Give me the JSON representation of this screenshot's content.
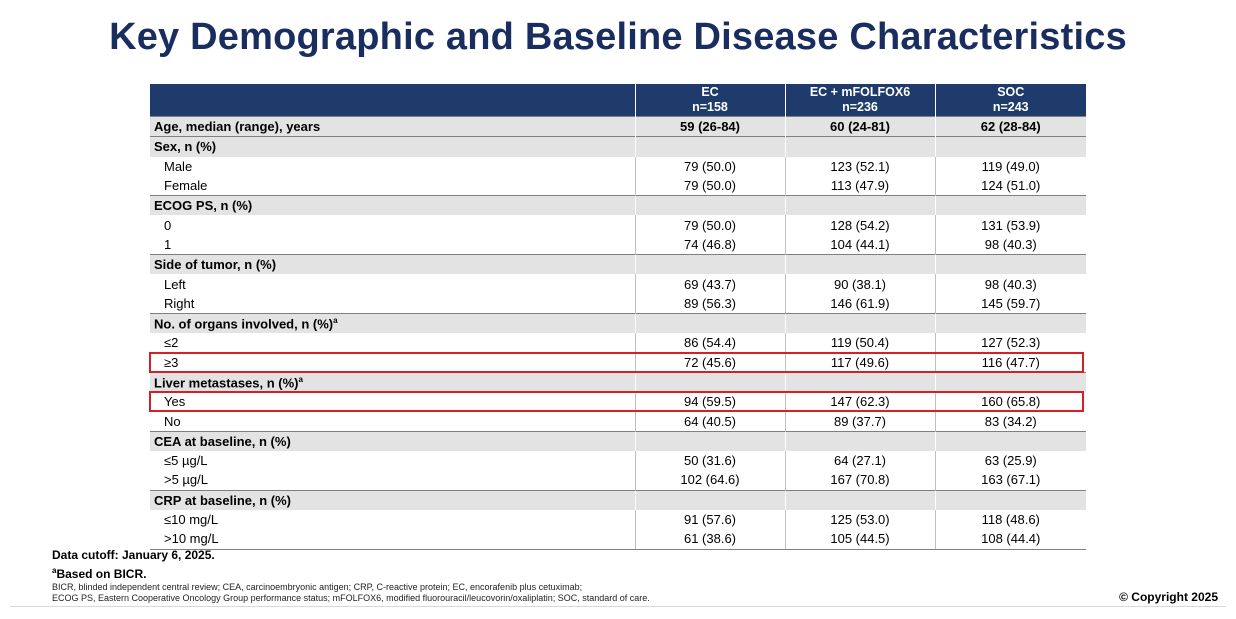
{
  "title": "Key Demographic and Baseline Disease Characteristics",
  "columns": [
    {
      "name": "EC",
      "n": "n=158"
    },
    {
      "name": "EC + mFOLFOX6",
      "n": "n=236"
    },
    {
      "name": "SOC",
      "n": "n=243"
    }
  ],
  "rows": [
    {
      "kind": "section",
      "label": "Age, median (range), years",
      "values": [
        "59 (26-84)",
        "60 (24-81)",
        "62 (28-84)"
      ]
    },
    {
      "kind": "section",
      "label": "Sex, n (%)",
      "values": [
        "",
        "",
        ""
      ]
    },
    {
      "kind": "item",
      "label": "Male",
      "values": [
        "79 (50.0)",
        "123 (52.1)",
        "119 (49.0)"
      ]
    },
    {
      "kind": "item",
      "label": "Female",
      "values": [
        "79 (50.0)",
        "113 (47.9)",
        "124 (51.0)"
      ]
    },
    {
      "kind": "section",
      "label": "ECOG PS, n (%)",
      "values": [
        "",
        "",
        ""
      ]
    },
    {
      "kind": "item",
      "label": "0",
      "values": [
        "79 (50.0)",
        "128 (54.2)",
        "131 (53.9)"
      ]
    },
    {
      "kind": "item",
      "label": "1",
      "values": [
        "74 (46.8)",
        "104 (44.1)",
        "98 (40.3)"
      ]
    },
    {
      "kind": "section",
      "label": "Side of tumor, n (%)",
      "values": [
        "",
        "",
        ""
      ]
    },
    {
      "kind": "item",
      "label": "Left",
      "values": [
        "69 (43.7)",
        "90 (38.1)",
        "98 (40.3)"
      ]
    },
    {
      "kind": "item",
      "label": "Right",
      "values": [
        "89 (56.3)",
        "146 (61.9)",
        "145 (59.7)"
      ]
    },
    {
      "kind": "section",
      "label": "No. of organs involved, n (%)",
      "sup": "a",
      "values": [
        "",
        "",
        ""
      ]
    },
    {
      "kind": "item",
      "label": "≤2",
      "values": [
        "86 (54.4)",
        "119 (50.4)",
        "127 (52.3)"
      ]
    },
    {
      "kind": "item",
      "label": "≥3",
      "values": [
        "72 (45.6)",
        "117 (49.6)",
        "116 (47.7)"
      ],
      "highlight": true
    },
    {
      "kind": "section",
      "label": "Liver metastases, n (%)",
      "sup": "a",
      "values": [
        "",
        "",
        ""
      ]
    },
    {
      "kind": "item",
      "label": "Yes",
      "values": [
        "94 (59.5)",
        "147 (62.3)",
        "160 (65.8)"
      ],
      "highlight": true
    },
    {
      "kind": "item",
      "label": "No",
      "values": [
        "64 (40.5)",
        "89 (37.7)",
        "83 (34.2)"
      ]
    },
    {
      "kind": "section",
      "label": "CEA at baseline, n (%)",
      "values": [
        "",
        "",
        ""
      ]
    },
    {
      "kind": "item",
      "label": "≤5 µg/L",
      "values": [
        "50 (31.6)",
        "64 (27.1)",
        "63 (25.9)"
      ]
    },
    {
      "kind": "item",
      "label": ">5 µg/L",
      "values": [
        "102 (64.6)",
        "167 (70.8)",
        "163 (67.1)"
      ]
    },
    {
      "kind": "section",
      "label": "CRP at baseline, n (%)",
      "values": [
        "",
        "",
        ""
      ]
    },
    {
      "kind": "item",
      "label": "≤10 mg/L",
      "values": [
        "91 (57.6)",
        "125 (53.0)",
        "118 (48.6)"
      ]
    },
    {
      "kind": "item",
      "label": ">10 mg/L",
      "values": [
        "61 (38.6)",
        "105 (44.5)",
        "108 (44.4)"
      ]
    }
  ],
  "footer": {
    "cutoff": "Data cutoff: January 6, 2025.",
    "note_sup": "a",
    "note": "Based on BICR.",
    "abbrev_1": "BICR, blinded independent central review; CEA, carcinoembryonic antigen; CRP, C-reactive protein; EC, encorafenib plus cetuximab;",
    "abbrev_2": "ECOG PS, Eastern Cooperative Oncology Group performance status; mFOLFOX6, modified fluorouracil/leucovorin/oxaliplatin; SOC, standard of care."
  },
  "copyright": "© Copyright 2025",
  "colors": {
    "title": "#1a2d5f",
    "header_bg": "#1f3b6b",
    "section_bg": "#e3e3e3",
    "highlight_border": "#d61f26"
  }
}
